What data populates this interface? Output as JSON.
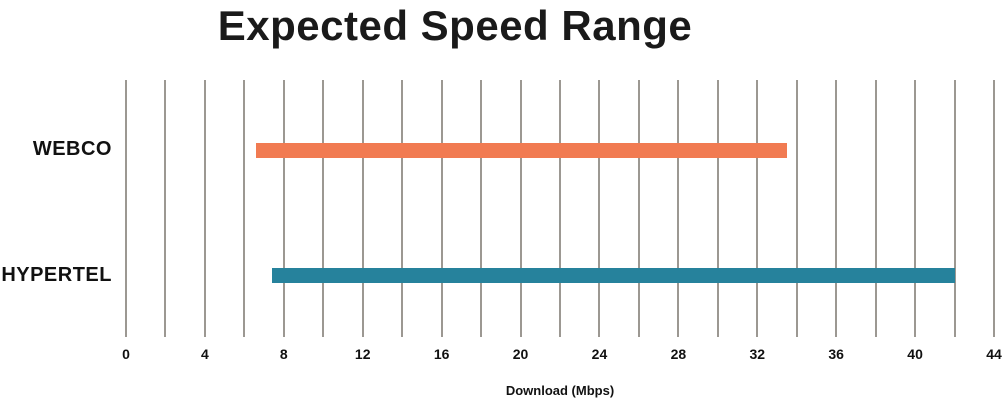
{
  "chart_data": {
    "type": "bar",
    "orientation": "horizontal",
    "title": "Expected Speed Range",
    "xlabel": "Download (Mbps)",
    "xlim": [
      0,
      44
    ],
    "x_ticks": [
      0,
      4,
      8,
      12,
      16,
      20,
      24,
      28,
      32,
      36,
      40,
      44
    ],
    "gridline_step": 2,
    "grid": true,
    "legend": false,
    "categories": [
      "WEBCO",
      "HYPERTEL"
    ],
    "series": [
      {
        "name": "WEBCO",
        "range": [
          6.6,
          33.5
        ],
        "color": "#f17b52"
      },
      {
        "name": "HYPERTEL",
        "range": [
          7.4,
          42.0
        ],
        "color": "#26829c"
      }
    ]
  },
  "colors": {
    "gridline": "#9c9892",
    "title_text": "#1a1a1a",
    "label_text": "#111111",
    "background": "#ffffff"
  }
}
